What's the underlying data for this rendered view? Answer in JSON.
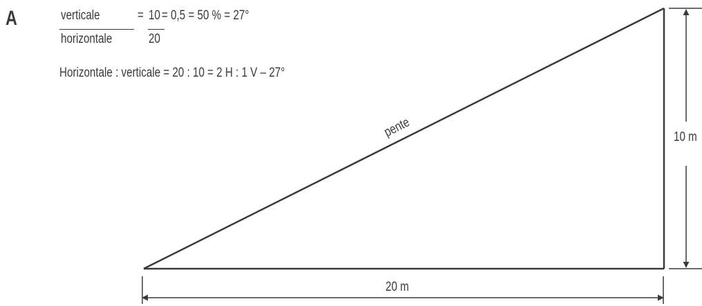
{
  "panel": {
    "letter": "A"
  },
  "formula": {
    "numerator_label": "verticale",
    "denominator_label": "horizontale",
    "numerator_value": "10",
    "denominator_value": "20",
    "eq_lead": "=",
    "result": "= 0,5 = 50 % = 27°"
  },
  "ratio_line": "Horizontale : verticale = 20 : 10 = 2 H : 1 V – 27°",
  "diagram": {
    "slope_label": "pente",
    "vertical_label": "10 m",
    "horizontal_label": "20 m",
    "line_color": "#3a3a3a"
  }
}
